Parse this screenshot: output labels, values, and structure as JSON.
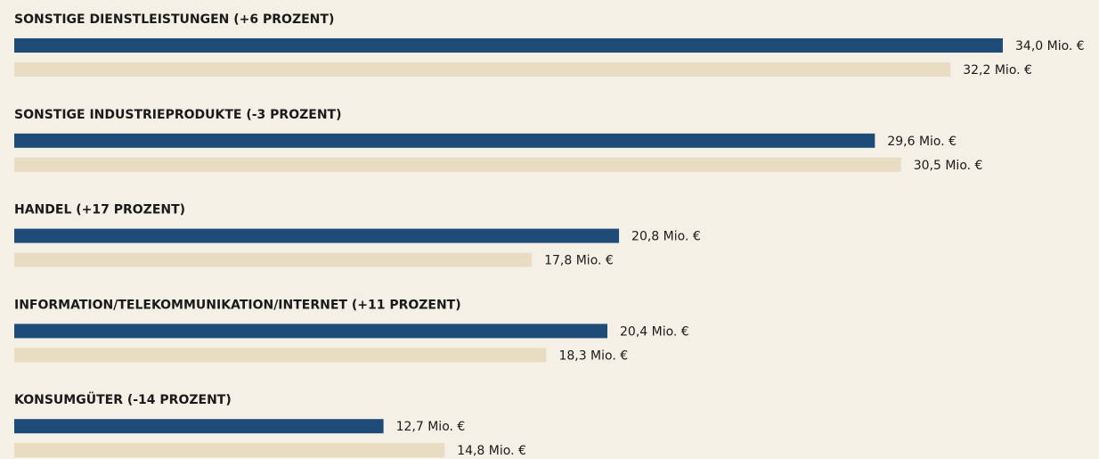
{
  "chart_data": {
    "type": "bar",
    "orientation": "horizontal",
    "categories": [
      "SONSTIGE DIENSTLEISTUNGEN (+6 PROZENT)",
      "SONSTIGE INDUSTRIEPRODUKTE (-3 PROZENT)",
      "HANDEL (+17 PROZENT)",
      "INFORMATION/TELEKOMMUNIKATION/INTERNET (+11 PROZENT)",
      "KONSUMGÜTER (-14 PROZENT)"
    ],
    "series": [
      {
        "color": "#1f4b78",
        "values": [
          34.0,
          29.6,
          20.8,
          20.4,
          12.7
        ],
        "value_labels": [
          "34,0 Mio. €",
          "29,6 Mio. €",
          "20,8 Mio. €",
          "20,4 Mio. €",
          "12,7 Mio. €"
        ]
      },
      {
        "color": "#e8dcc3",
        "values": [
          32.2,
          30.5,
          17.8,
          18.3,
          14.8
        ],
        "value_labels": [
          "32,2 Mio. €",
          "30,5 Mio. €",
          "17,8 Mio. €",
          "18,3 Mio. €",
          "14,8 Mio. €"
        ]
      }
    ]
  }
}
